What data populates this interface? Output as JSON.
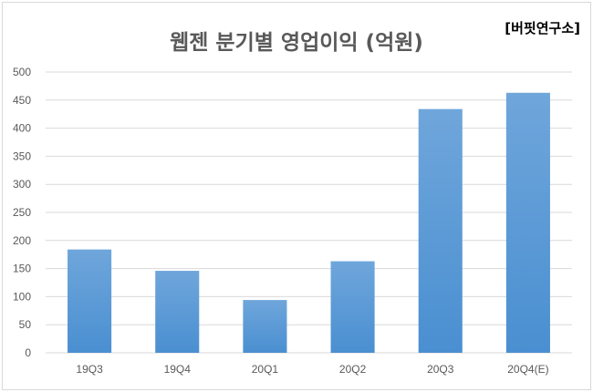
{
  "header": {
    "source_label": "[버핏연구소]"
  },
  "chart_data": {
    "type": "bar",
    "title": "웹젠 분기별 영업이익 (억원)",
    "categories": [
      "19Q3",
      "19Q4",
      "20Q1",
      "20Q2",
      "20Q3",
      "20Q4(E)"
    ],
    "values": [
      184,
      146,
      94,
      163,
      434,
      463
    ],
    "yticks": [
      "0",
      "50",
      "100",
      "150",
      "200",
      "250",
      "300",
      "350",
      "400",
      "450",
      "500"
    ],
    "ylim": [
      0,
      500
    ],
    "grid": true,
    "bar_color": "#5b9bd5",
    "xlabel": "",
    "ylabel": ""
  }
}
